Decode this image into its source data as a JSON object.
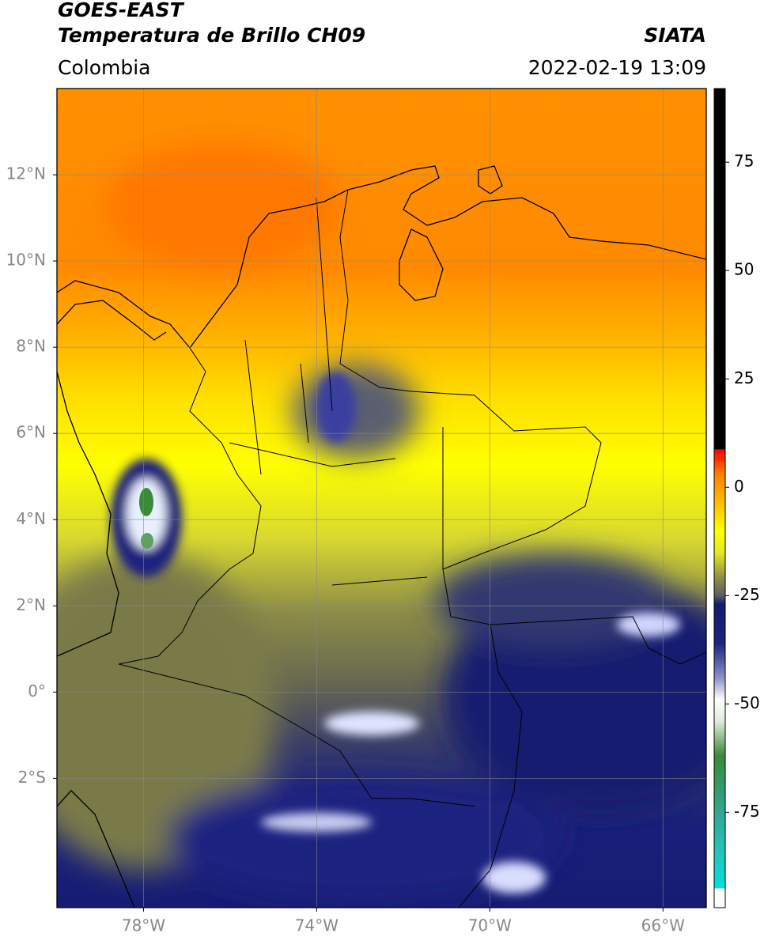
{
  "header": {
    "satellite": "GOES-EAST",
    "product": "Temperatura de Brillo CH09",
    "source": "SIATA",
    "region": "Colombia",
    "datetime": "2022-02-19 13:09"
  },
  "map": {
    "lon_range": [
      -80,
      -65
    ],
    "lat_range": [
      -5,
      14
    ],
    "grid": true,
    "xticks": [
      {
        "value": -78,
        "label": "78°W"
      },
      {
        "value": -74,
        "label": "74°W"
      },
      {
        "value": -70,
        "label": "70°W"
      },
      {
        "value": -66,
        "label": "66°W"
      }
    ],
    "yticks": [
      {
        "value": 12,
        "label": "12°N"
      },
      {
        "value": 10,
        "label": "10°N"
      },
      {
        "value": 8,
        "label": "8°N"
      },
      {
        "value": 6,
        "label": "6°N"
      },
      {
        "value": 4,
        "label": "4°N"
      },
      {
        "value": 2,
        "label": "2°N"
      },
      {
        "value": 0,
        "label": "0°"
      },
      {
        "value": -2,
        "label": "2°S"
      }
    ]
  },
  "colorbar": {
    "range": [
      -97,
      92
    ],
    "ticks": [
      75,
      50,
      25,
      0,
      -25,
      -50,
      -75
    ],
    "stops": [
      {
        "value": -97,
        "color": "#ffffff"
      },
      {
        "value": -92.6,
        "color": "#ffffff"
      },
      {
        "value": -92.5,
        "color": "#00e0e0"
      },
      {
        "value": -85,
        "color": "#20c8c0"
      },
      {
        "value": -75,
        "color": "#2fa890"
      },
      {
        "value": -62,
        "color": "#3a8a3a"
      },
      {
        "value": -54,
        "color": "#dfecd8"
      },
      {
        "value": -49,
        "color": "#ffffff"
      },
      {
        "value": -44,
        "color": "#8c90cc"
      },
      {
        "value": -36,
        "color": "#1e247e"
      },
      {
        "value": -27,
        "color": "#141a6e"
      },
      {
        "value": -25,
        "color": "#5a5e68"
      },
      {
        "value": -21,
        "color": "#8c8c48"
      },
      {
        "value": -15,
        "color": "#e8e820"
      },
      {
        "value": -10,
        "color": "#ffff00"
      },
      {
        "value": -4,
        "color": "#ffc000"
      },
      {
        "value": 3,
        "color": "#ff8000"
      },
      {
        "value": 8.7,
        "color": "#ff0000"
      },
      {
        "value": 8.8,
        "color": "#000000"
      },
      {
        "value": 92,
        "color": "#000000"
      }
    ]
  }
}
